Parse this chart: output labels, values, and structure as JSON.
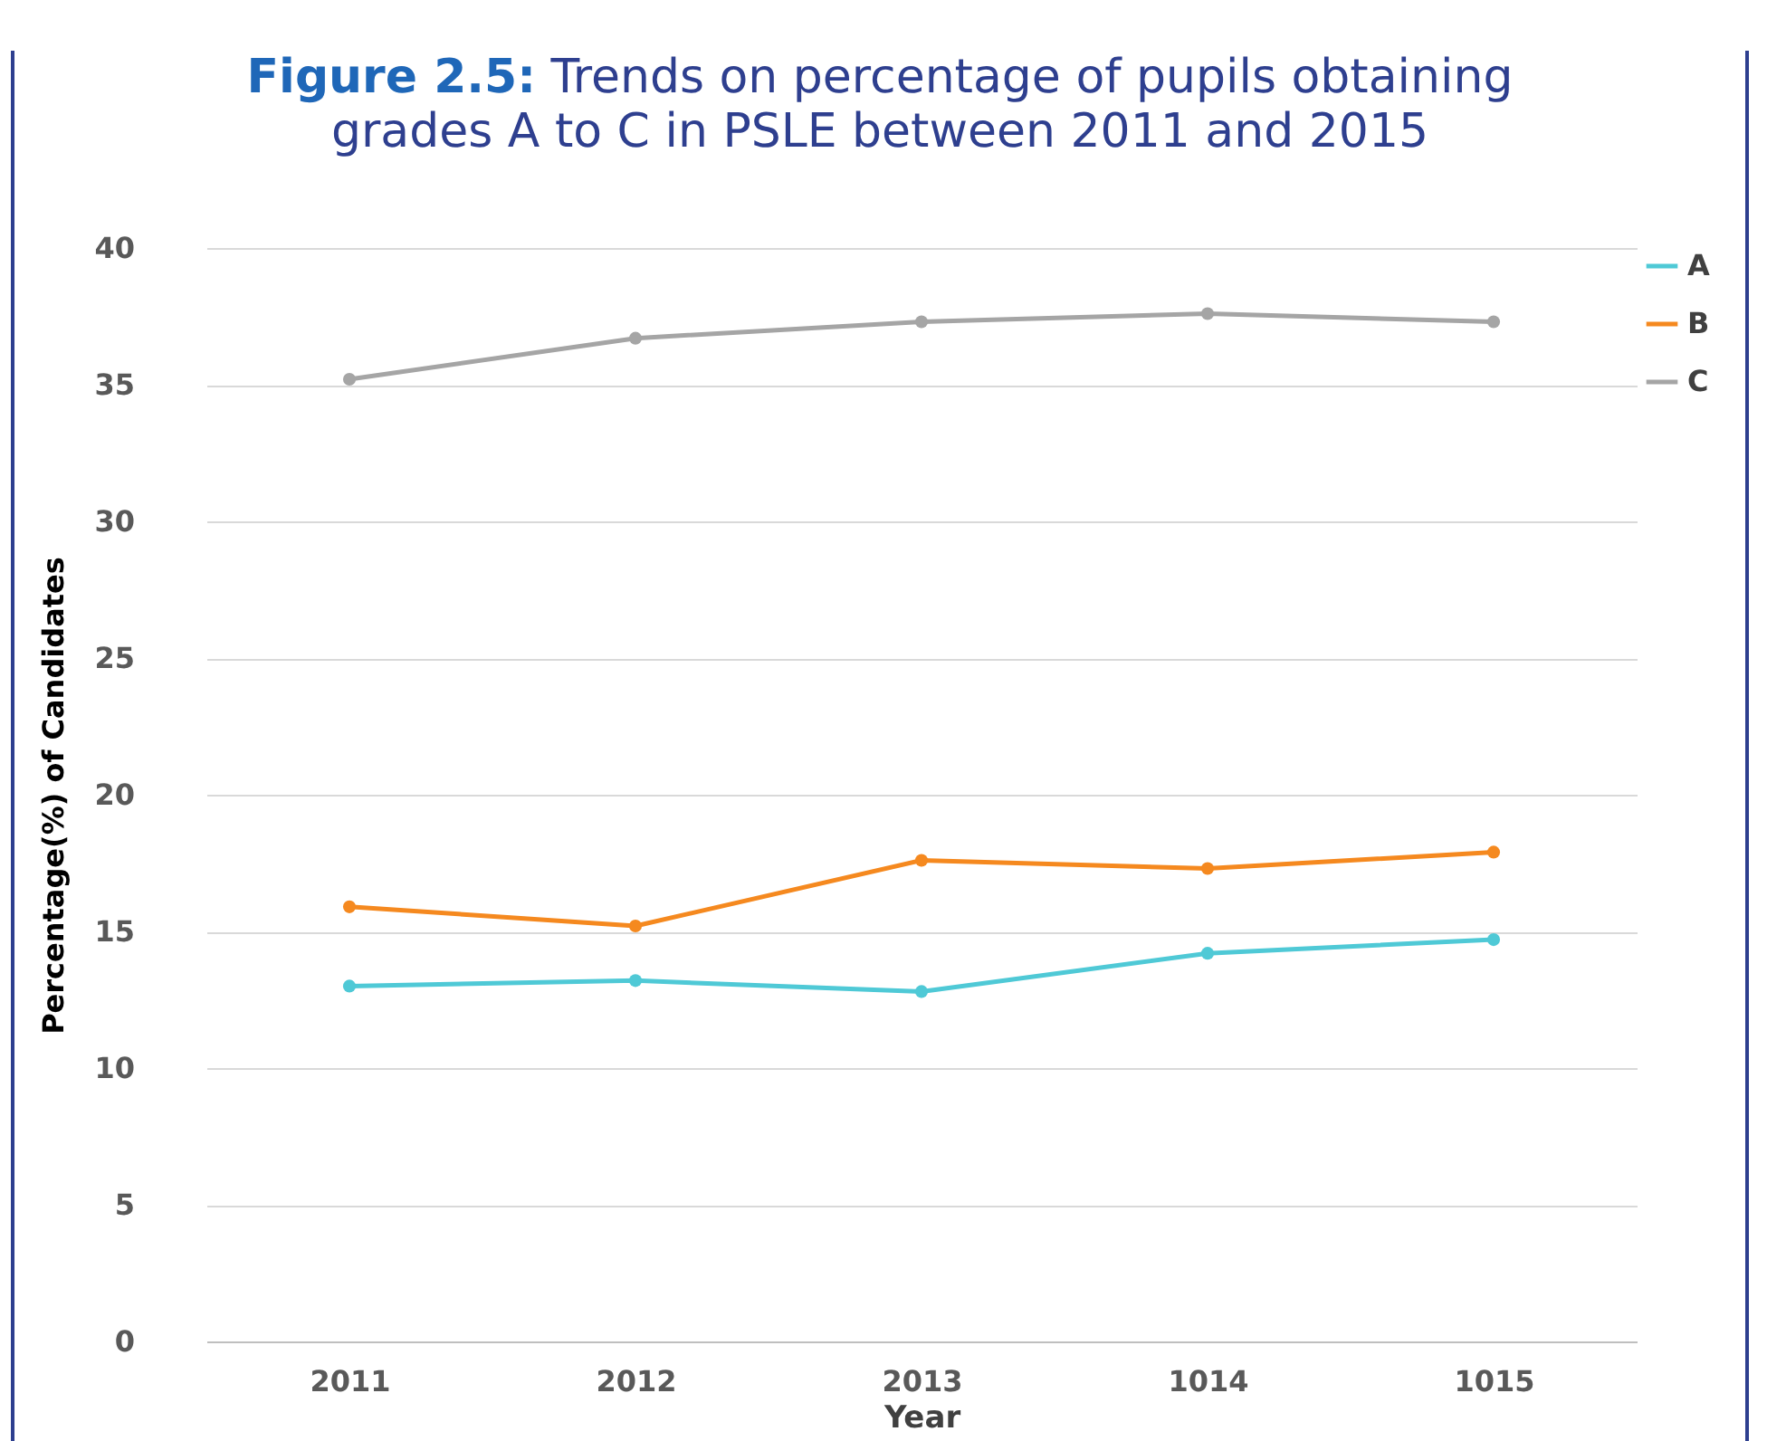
{
  "chart_data": {
    "type": "line",
    "title": "Figure 2.5: Trends on percentage of pupils obtaining grades A to C in PSLE between 2011 and 2015",
    "xlabel": "Year",
    "ylabel": "Percentage(%) of Candidates",
    "categories": [
      "2011",
      "2012",
      "2013",
      "1014",
      "1015"
    ],
    "series": [
      {
        "name": "A",
        "color": "#4fc9d6",
        "values": [
          13.0,
          13.2,
          12.8,
          14.2,
          14.7
        ]
      },
      {
        "name": "B",
        "color": "#f5891f",
        "values": [
          15.9,
          15.2,
          17.6,
          17.3,
          17.9
        ]
      },
      {
        "name": "C",
        "color": "#a5a5a5",
        "values": [
          35.2,
          36.7,
          37.3,
          37.6,
          37.3
        ]
      }
    ],
    "ylim": [
      0,
      40
    ],
    "yticks": [
      0,
      5,
      10,
      15,
      20,
      25,
      30,
      35,
      40
    ],
    "grid": "y",
    "legend": "right",
    "marker": "circle",
    "line_style": "solid"
  }
}
